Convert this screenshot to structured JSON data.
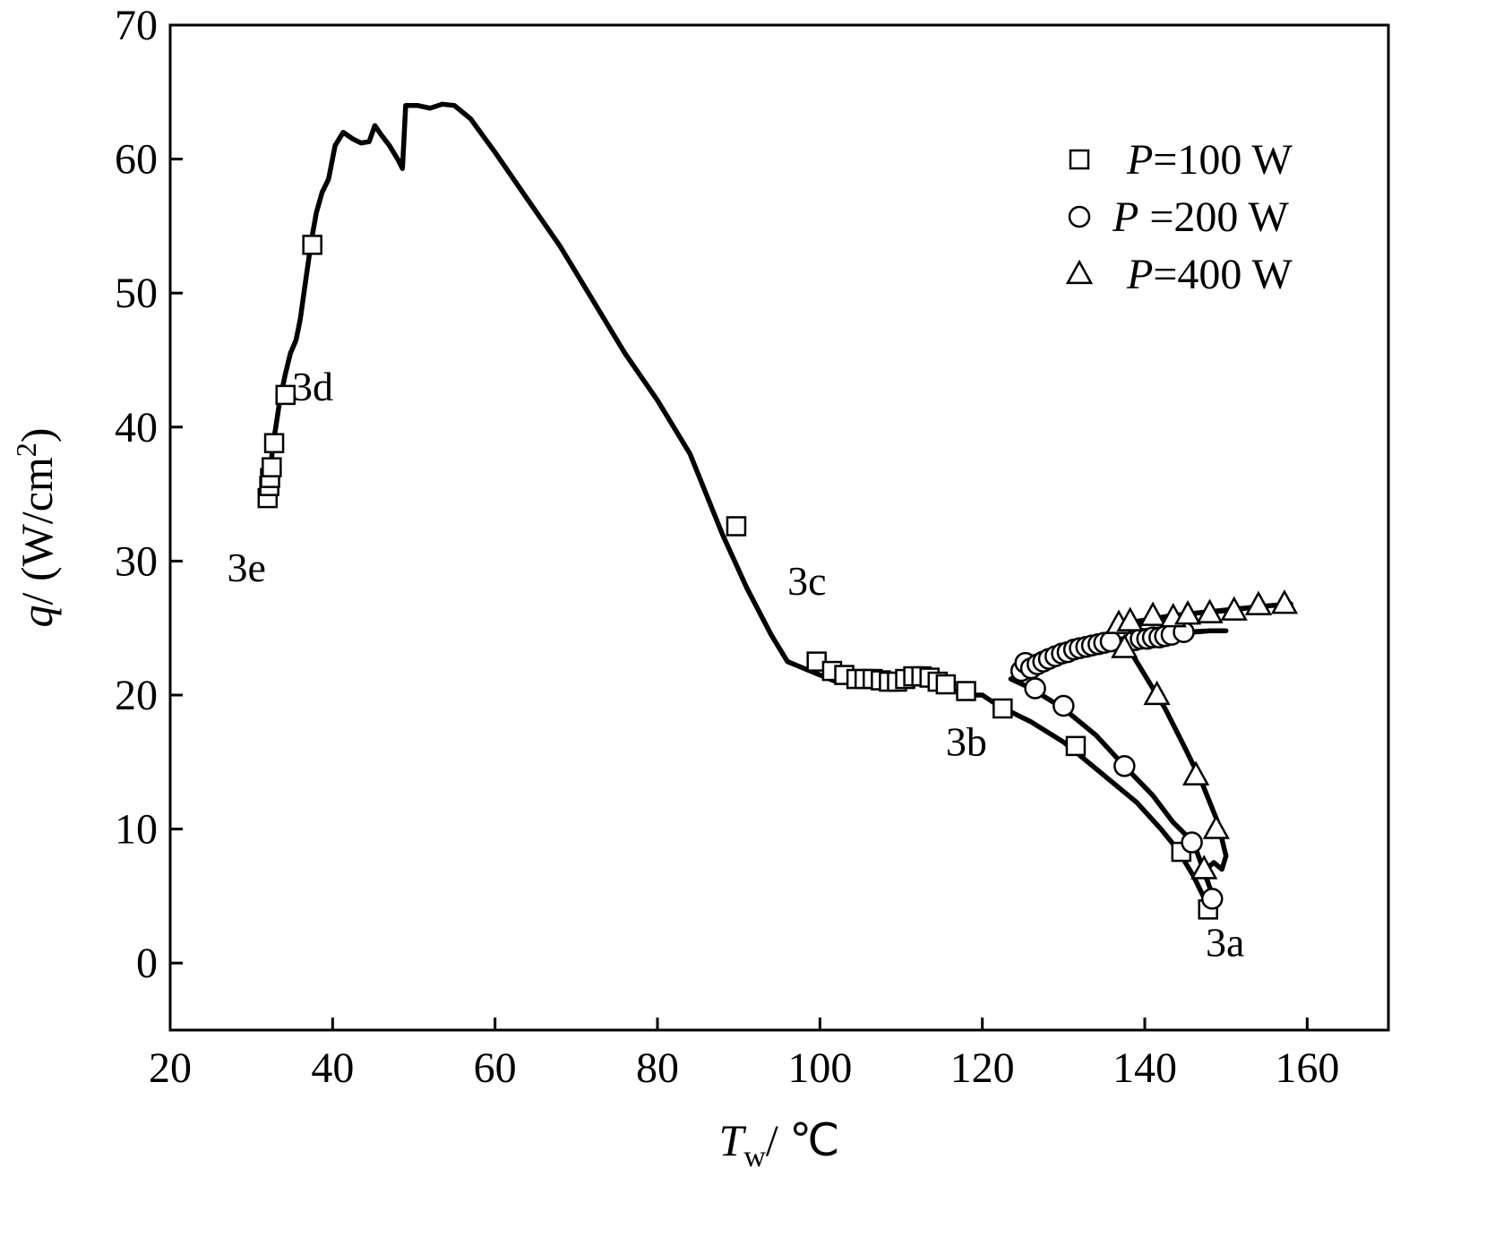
{
  "chart_data": {
    "type": "scatter",
    "title": "",
    "xlabel": {
      "main": "T",
      "sub": "w",
      "unit": "/ ℃"
    },
    "ylabel": {
      "main": "q",
      "unit": "/ (W/cm",
      "sup": "2",
      "close": ")"
    },
    "xlim": [
      20,
      170
    ],
    "ylim": [
      -5,
      70
    ],
    "x_ticks": [
      20,
      40,
      60,
      80,
      100,
      120,
      140,
      160
    ],
    "y_ticks": [
      0,
      10,
      20,
      30,
      40,
      50,
      60,
      70
    ],
    "grid": false,
    "legend_position": "top-right",
    "legend": [
      {
        "symbol": "square",
        "prefix": "P",
        "text": "=100 W"
      },
      {
        "symbol": "circle",
        "prefix": "P",
        "text": " =200 W"
      },
      {
        "symbol": "triangle",
        "prefix": "P",
        "text": "=400 W"
      }
    ],
    "annotations": [
      {
        "text": "3a",
        "x": 147.5,
        "y": 0.5
      },
      {
        "text": "3b",
        "x": 115.5,
        "y": 15.5
      },
      {
        "text": "3c",
        "x": 96,
        "y": 27.5
      },
      {
        "text": "3d",
        "x": 35,
        "y": 42
      },
      {
        "text": "3e",
        "x": 27,
        "y": 28.5
      }
    ],
    "series": [
      {
        "name": "P=100 W",
        "marker": "square",
        "line": [
          [
            32,
            34.5
          ],
          [
            32.3,
            36
          ],
          [
            32.6,
            38.5
          ],
          [
            33,
            40
          ],
          [
            33.5,
            42
          ],
          [
            34.2,
            44
          ],
          [
            34.8,
            45.5
          ],
          [
            35.5,
            46.5
          ],
          [
            36,
            48
          ],
          [
            36.7,
            51
          ],
          [
            37.4,
            54
          ],
          [
            38,
            56
          ],
          [
            38.7,
            57.5
          ],
          [
            39.5,
            58.5
          ],
          [
            40.3,
            61
          ],
          [
            41.3,
            62
          ],
          [
            42.5,
            61.5
          ],
          [
            43.5,
            61.2
          ],
          [
            44.5,
            61.3
          ],
          [
            45.2,
            62.5
          ],
          [
            46,
            61.8
          ],
          [
            47,
            61
          ],
          [
            48,
            60
          ],
          [
            48.6,
            59.3
          ],
          [
            49,
            64
          ],
          [
            50.5,
            64
          ],
          [
            52,
            63.8
          ],
          [
            53.5,
            64.1
          ],
          [
            55,
            64
          ],
          [
            57,
            63
          ],
          [
            60,
            60.5
          ],
          [
            64,
            57
          ],
          [
            68,
            53.5
          ],
          [
            72,
            49.5
          ],
          [
            76,
            45.5
          ],
          [
            80,
            42
          ],
          [
            84,
            38
          ],
          [
            88,
            32
          ],
          [
            91,
            28
          ],
          [
            94,
            24.5
          ],
          [
            96,
            22.5
          ],
          [
            98,
            22
          ],
          [
            100,
            21.5
          ],
          [
            102,
            21
          ],
          [
            104,
            21
          ],
          [
            110,
            21
          ],
          [
            114,
            20.8
          ],
          [
            116,
            20.4
          ],
          [
            118,
            20
          ],
          [
            120,
            20
          ],
          [
            122,
            19.2
          ],
          [
            126,
            18
          ],
          [
            130,
            16.5
          ],
          [
            133,
            15
          ],
          [
            136,
            13.5
          ],
          [
            139,
            12
          ],
          [
            142,
            10
          ],
          [
            144,
            8.5
          ],
          [
            146,
            6.5
          ],
          [
            148,
            4
          ]
        ],
        "points": [
          [
            32,
            34.7
          ],
          [
            32.2,
            35.6
          ],
          [
            32.3,
            36.2
          ],
          [
            32.5,
            37
          ],
          [
            32.8,
            38.8
          ],
          [
            34.2,
            42.4
          ],
          [
            37.5,
            53.6
          ],
          [
            89.7,
            32.6
          ],
          [
            99.6,
            22.5
          ],
          [
            101.5,
            21.8
          ],
          [
            103,
            21.5
          ],
          [
            104.5,
            21.2
          ],
          [
            105.5,
            21.2
          ],
          [
            106.5,
            21.2
          ],
          [
            107.5,
            21.1
          ],
          [
            108.5,
            21
          ],
          [
            109.5,
            21
          ],
          [
            110.5,
            21.2
          ],
          [
            111.5,
            21.4
          ],
          [
            112.5,
            21.4
          ],
          [
            113.5,
            21.3
          ],
          [
            114.5,
            21
          ],
          [
            115.5,
            20.8
          ],
          [
            118,
            20.3
          ],
          [
            122.5,
            19
          ],
          [
            131.5,
            16.2
          ],
          [
            144.5,
            8.3
          ],
          [
            147.8,
            4
          ]
        ]
      },
      {
        "name": "P=200 W",
        "marker": "circle",
        "line": [
          [
            124.5,
            21.8
          ],
          [
            126,
            22.4
          ],
          [
            128,
            23
          ],
          [
            130,
            23.3
          ],
          [
            132,
            23.5
          ],
          [
            134,
            23.8
          ],
          [
            136,
            24
          ],
          [
            138,
            24.2
          ],
          [
            140,
            24.3
          ],
          [
            142,
            24.4
          ],
          [
            145,
            24.7
          ],
          [
            148,
            24.8
          ],
          [
            150,
            24.8
          ],
          [
            148,
            24.8
          ],
          [
            144,
            24.6
          ],
          [
            138,
            24.3
          ],
          [
            132,
            23.5
          ],
          [
            126,
            21.5
          ],
          [
            123.5,
            21.2
          ],
          [
            126,
            20.5
          ],
          [
            130,
            19
          ],
          [
            134,
            17
          ],
          [
            137.5,
            14.7
          ],
          [
            141,
            12.5
          ],
          [
            143.5,
            10.5
          ],
          [
            146,
            9
          ],
          [
            147.5,
            6.5
          ],
          [
            148.5,
            4.8
          ]
        ],
        "points": [
          [
            124.8,
            21.8
          ],
          [
            125.3,
            22.4
          ],
          [
            126,
            22
          ],
          [
            126.8,
            22.3
          ],
          [
            127.5,
            22.5
          ],
          [
            128.2,
            22.7
          ],
          [
            129,
            22.9
          ],
          [
            129.8,
            23.1
          ],
          [
            130.5,
            23.2
          ],
          [
            131.3,
            23.4
          ],
          [
            132,
            23.5
          ],
          [
            132.8,
            23.6
          ],
          [
            133.5,
            23.7
          ],
          [
            134.3,
            23.8
          ],
          [
            135,
            23.9
          ],
          [
            135.8,
            24
          ],
          [
            138.8,
            24.1
          ],
          [
            139.5,
            24.2
          ],
          [
            140.3,
            24.2
          ],
          [
            141,
            24.3
          ],
          [
            141.8,
            24.3
          ],
          [
            142.5,
            24.4
          ],
          [
            143.3,
            24.5
          ],
          [
            144.8,
            24.7
          ],
          [
            126.5,
            20.5
          ],
          [
            130,
            19.2
          ],
          [
            137.5,
            14.7
          ],
          [
            145.8,
            9
          ],
          [
            148.3,
            4.8
          ]
        ]
      },
      {
        "name": "P=400 W",
        "marker": "triangle",
        "line": [
          [
            137,
            25.3
          ],
          [
            140,
            25.6
          ],
          [
            143,
            25.9
          ],
          [
            146,
            26.1
          ],
          [
            150,
            26.3
          ],
          [
            154,
            26.6
          ],
          [
            158,
            26.8
          ],
          [
            154,
            26.6
          ],
          [
            146,
            26.1
          ],
          [
            140,
            25.6
          ],
          [
            137.5,
            24
          ],
          [
            140,
            21.5
          ],
          [
            142.5,
            19
          ],
          [
            145,
            16
          ],
          [
            147,
            13.5
          ],
          [
            149,
            10.5
          ],
          [
            150,
            8
          ],
          [
            149.5,
            7
          ],
          [
            148.5,
            7.5
          ],
          [
            147.5,
            7
          ]
        ],
        "points": [
          [
            136.8,
            25.3
          ],
          [
            138.2,
            25.5
          ],
          [
            141,
            25.9
          ],
          [
            143.5,
            25.8
          ],
          [
            145.3,
            26
          ],
          [
            148,
            26.1
          ],
          [
            151,
            26.3
          ],
          [
            154,
            26.7
          ],
          [
            157.2,
            26.8
          ],
          [
            137.5,
            23.5
          ],
          [
            141.5,
            20
          ],
          [
            146.3,
            14
          ],
          [
            148.8,
            10
          ],
          [
            147.3,
            7
          ]
        ]
      }
    ]
  }
}
